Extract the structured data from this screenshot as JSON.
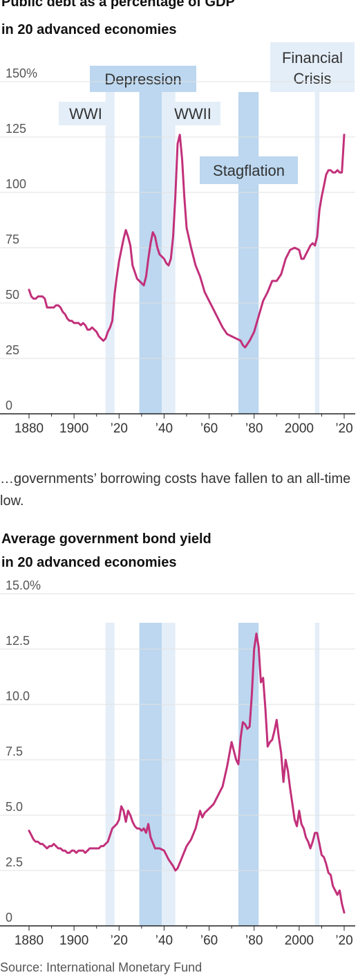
{
  "caption": "…governments’ borrowing costs have fallen to an all-time low.",
  "source": "Source: International Monetary Fund",
  "colors": {
    "line": "#c2307a",
    "band_strong": "#bcd7ef",
    "band_light": "#e4eef8",
    "grid": "#e2e2e2",
    "axis": "#222222"
  },
  "periods": [
    {
      "label": "WWI",
      "start": 1914,
      "end": 1918,
      "shade": "light"
    },
    {
      "label": "Depression",
      "start": 1929,
      "end": 1939,
      "shade": "strong"
    },
    {
      "label": "WWII",
      "start": 1939,
      "end": 1945,
      "shade": "light"
    },
    {
      "label": "Stagflation",
      "start": 1973,
      "end": 1982,
      "shade": "strong"
    },
    {
      "label": "Financial Crisis",
      "start": 2007,
      "end": 2009,
      "shade": "light"
    }
  ],
  "chart_data": [
    {
      "type": "line",
      "title": "Public debt as a percentage of GDP",
      "subtitle": "in 20 advanced economies",
      "ylim": [
        0,
        150
      ],
      "yticks": [
        0,
        25,
        50,
        75,
        100,
        125,
        150
      ],
      "ytick_labels": [
        "0",
        "25",
        "50",
        "75",
        "100",
        "125",
        "150%"
      ],
      "xlim": [
        1880,
        2020
      ],
      "xticks": [
        1880,
        1900,
        1920,
        1940,
        1960,
        1980,
        2000,
        2020
      ],
      "xtick_labels": [
        "1880",
        "1900",
        "’20",
        "’40",
        "’60",
        "’80",
        "2000",
        "’20"
      ],
      "grid": true,
      "x": [
        1880,
        1881,
        1882,
        1883,
        1884,
        1885,
        1886,
        1887,
        1888,
        1889,
        1890,
        1891,
        1892,
        1893,
        1894,
        1895,
        1896,
        1897,
        1898,
        1899,
        1900,
        1901,
        1902,
        1903,
        1904,
        1905,
        1906,
        1907,
        1908,
        1909,
        1910,
        1911,
        1912,
        1913,
        1914,
        1915,
        1916,
        1917,
        1918,
        1919,
        1920,
        1921,
        1922,
        1923,
        1924,
        1925,
        1926,
        1927,
        1928,
        1929,
        1930,
        1931,
        1932,
        1933,
        1934,
        1935,
        1936,
        1937,
        1938,
        1939,
        1940,
        1941,
        1942,
        1943,
        1944,
        1945,
        1946,
        1947,
        1948,
        1949,
        1950,
        1952,
        1954,
        1956,
        1958,
        1960,
        1962,
        1964,
        1966,
        1968,
        1970,
        1972,
        1974,
        1975,
        1976,
        1978,
        1980,
        1982,
        1984,
        1986,
        1988,
        1990,
        1992,
        1994,
        1996,
        1998,
        2000,
        2001,
        2002,
        2003,
        2004,
        2005,
        2006,
        2007,
        2008,
        2009,
        2010,
        2011,
        2012,
        2013,
        2014,
        2015,
        2016,
        2017,
        2018,
        2019,
        2020
      ],
      "y": [
        56,
        53,
        52,
        52,
        53,
        53,
        53,
        52,
        48,
        48,
        48,
        48,
        49,
        49,
        48,
        46,
        45,
        43,
        42,
        42,
        41,
        41,
        41,
        40,
        41,
        40,
        38,
        38,
        39,
        38,
        37,
        35,
        34,
        33,
        34,
        37,
        39,
        42,
        54,
        62,
        69,
        74,
        79,
        83,
        80,
        76,
        67,
        64,
        61,
        60,
        59,
        58,
        62,
        70,
        77,
        82,
        80,
        75,
        72,
        71,
        70,
        68,
        67,
        70,
        80,
        98,
        122,
        126,
        115,
        98,
        84,
        75,
        67,
        62,
        55,
        51,
        47,
        43,
        39,
        36,
        35,
        34,
        33,
        31,
        30,
        33,
        37,
        44,
        51,
        55,
        60,
        60,
        63,
        70,
        74,
        75,
        74,
        70,
        70,
        72,
        74,
        76,
        77,
        76,
        80,
        92,
        98,
        103,
        108,
        110,
        110,
        109,
        109,
        110,
        109,
        109,
        126
      ]
    },
    {
      "type": "line",
      "title": "Average government bond yield",
      "subtitle": "in 20 advanced economies",
      "ylim": [
        0,
        15
      ],
      "yticks": [
        0,
        2.5,
        5,
        7.5,
        10,
        12.5,
        15
      ],
      "ytick_labels": [
        "0",
        "2.5",
        "5.0",
        "7.5",
        "10.0",
        "12.5",
        "15.0%"
      ],
      "xlim": [
        1880,
        2020
      ],
      "xticks": [
        1880,
        1900,
        1920,
        1940,
        1960,
        1980,
        2000,
        2020
      ],
      "xtick_labels": [
        "1880",
        "1900",
        "’20",
        "’40",
        "’60",
        "’80",
        "2000",
        "’20"
      ],
      "grid": true,
      "x": [
        1880,
        1881,
        1882,
        1883,
        1884,
        1885,
        1886,
        1887,
        1888,
        1889,
        1890,
        1891,
        1892,
        1893,
        1894,
        1895,
        1896,
        1897,
        1898,
        1899,
        1900,
        1901,
        1902,
        1903,
        1904,
        1905,
        1906,
        1907,
        1908,
        1909,
        1910,
        1911,
        1912,
        1913,
        1914,
        1915,
        1916,
        1917,
        1918,
        1919,
        1920,
        1921,
        1922,
        1923,
        1924,
        1925,
        1926,
        1927,
        1928,
        1929,
        1930,
        1931,
        1932,
        1933,
        1934,
        1936,
        1938,
        1940,
        1942,
        1944,
        1945,
        1946,
        1948,
        1950,
        1952,
        1954,
        1956,
        1957,
        1958,
        1960,
        1962,
        1964,
        1966,
        1968,
        1970,
        1972,
        1973,
        1974,
        1975,
        1976,
        1977,
        1978,
        1979,
        1980,
        1981,
        1982,
        1983,
        1984,
        1985,
        1986,
        1987,
        1988,
        1989,
        1990,
        1991,
        1992,
        1993,
        1994,
        1995,
        1996,
        1997,
        1998,
        1999,
        2000,
        2001,
        2002,
        2003,
        2004,
        2005,
        2006,
        2007,
        2008,
        2009,
        2010,
        2011,
        2012,
        2013,
        2014,
        2015,
        2016,
        2017,
        2018,
        2019,
        2020
      ],
      "y": [
        4.3,
        4.1,
        3.9,
        3.8,
        3.8,
        3.7,
        3.7,
        3.6,
        3.5,
        3.6,
        3.6,
        3.7,
        3.6,
        3.5,
        3.5,
        3.4,
        3.4,
        3.3,
        3.3,
        3.4,
        3.4,
        3.3,
        3.4,
        3.4,
        3.4,
        3.3,
        3.4,
        3.5,
        3.5,
        3.5,
        3.5,
        3.5,
        3.6,
        3.6,
        3.7,
        3.8,
        4.1,
        4.4,
        4.5,
        4.6,
        4.8,
        5.4,
        5.2,
        4.7,
        5.2,
        5.0,
        4.7,
        4.5,
        4.4,
        4.4,
        4.3,
        4.4,
        4.2,
        4.6,
        4.0,
        3.5,
        3.5,
        3.4,
        3.0,
        2.7,
        2.5,
        2.6,
        3.1,
        3.6,
        3.9,
        4.4,
        5.2,
        4.9,
        5.1,
        5.3,
        5.5,
        5.9,
        6.3,
        7.2,
        8.3,
        7.5,
        7.3,
        8.5,
        9.2,
        9.1,
        8.9,
        9.0,
        10.5,
        12.5,
        13.2,
        12.6,
        11.0,
        11.2,
        9.8,
        8.1,
        8.3,
        8.4,
        8.8,
        9.3,
        8.5,
        7.8,
        6.5,
        7.5,
        7.0,
        6.2,
        5.5,
        4.8,
        4.5,
        5.2,
        4.6,
        4.4,
        4.0,
        3.8,
        3.5,
        3.8,
        4.2,
        4.2,
        3.7,
        3.2,
        3.1,
        2.8,
        2.4,
        2.3,
        1.8,
        1.6,
        1.4,
        1.6,
        1.0,
        0.6
      ]
    }
  ]
}
